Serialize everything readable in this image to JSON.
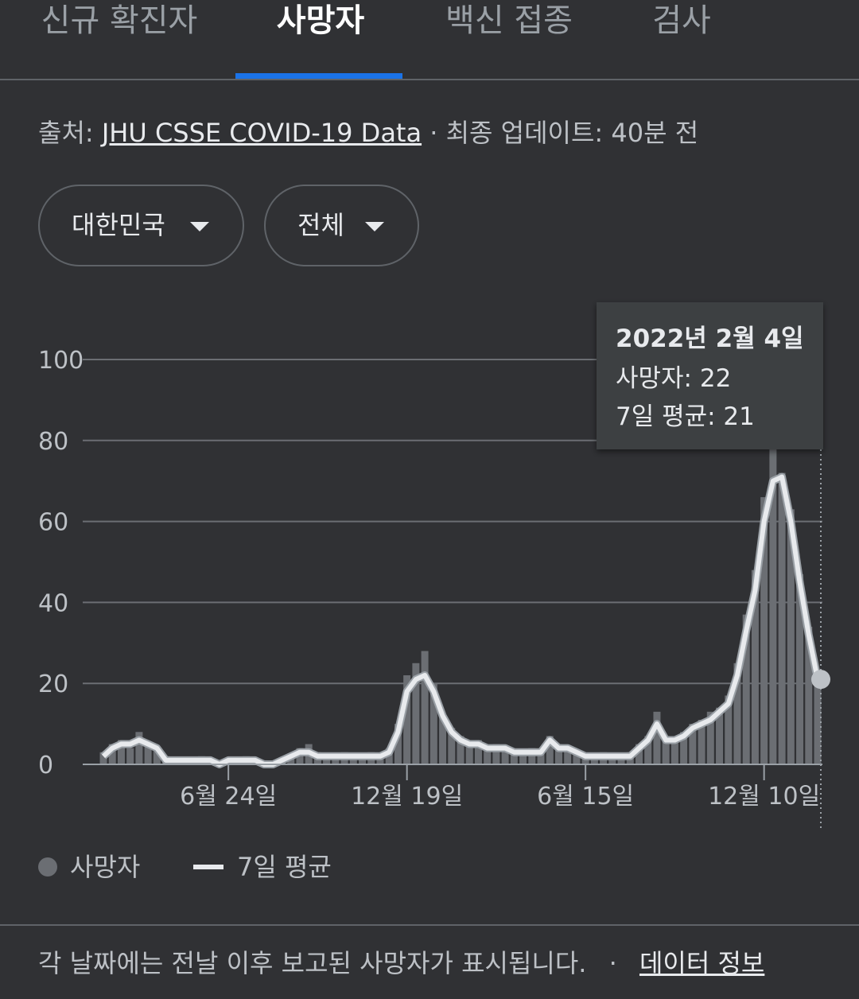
{
  "tabs": {
    "items": [
      "신규 확진자",
      "사망자",
      "백신 접종",
      "검사"
    ],
    "selected": 1
  },
  "source": {
    "label": "출처:",
    "link": "JHU CSSE COVID-19 Data",
    "updated": "· 최종 업데이트: 40분 전"
  },
  "filters": [
    "대한민국",
    "전체"
  ],
  "chart_data": {
    "type": "bar_line",
    "categories": [
      null,
      null,
      null,
      null,
      null,
      null,
      null,
      null,
      null,
      null,
      null,
      null,
      null,
      null,
      "6월 24일",
      null,
      null,
      null,
      null,
      null,
      null,
      null,
      null,
      null,
      null,
      null,
      null,
      null,
      null,
      null,
      null,
      null,
      null,
      null,
      "12월 19일",
      null,
      null,
      null,
      null,
      null,
      null,
      null,
      null,
      null,
      null,
      null,
      null,
      null,
      null,
      null,
      null,
      null,
      null,
      null,
      "6월 15일",
      null,
      null,
      null,
      null,
      null,
      null,
      null,
      null,
      null,
      null,
      null,
      null,
      null,
      null,
      null,
      null,
      null,
      null,
      null,
      "12월 10일",
      null,
      null,
      null,
      null,
      null,
      null
    ],
    "series": [
      {
        "name": "사망자",
        "color": "#6b6e73",
        "values": [
          3,
          5,
          6,
          4,
          8,
          5,
          4,
          2,
          1,
          1,
          1,
          2,
          0,
          1,
          1,
          1,
          2,
          0,
          1,
          0,
          1,
          2,
          4,
          5,
          3,
          2,
          2,
          3,
          2,
          2,
          3,
          2,
          4,
          10,
          22,
          25,
          28,
          20,
          12,
          9,
          7,
          5,
          6,
          4,
          5,
          4,
          3,
          3,
          4,
          3,
          7,
          5,
          4,
          3,
          2,
          2,
          3,
          2,
          2,
          3,
          5,
          7,
          13,
          7,
          6,
          8,
          10,
          11,
          13,
          14,
          17,
          25,
          37,
          48,
          66,
          82,
          72,
          63,
          47,
          34,
          22
        ]
      },
      {
        "name": "7일 평균",
        "color": "#e8eaed",
        "values": [
          2,
          4,
          5,
          5,
          6,
          5,
          4,
          1,
          1,
          1,
          1,
          1,
          1,
          0,
          1,
          1,
          1,
          1,
          0,
          0,
          1,
          2,
          3,
          3,
          2,
          2,
          2,
          2,
          2,
          2,
          2,
          2,
          3,
          8,
          18,
          21,
          22,
          18,
          12,
          8,
          6,
          5,
          5,
          4,
          4,
          4,
          3,
          3,
          3,
          3,
          6,
          4,
          4,
          3,
          2,
          2,
          2,
          2,
          2,
          2,
          4,
          6,
          10,
          6,
          6,
          7,
          9,
          10,
          11,
          13,
          15,
          22,
          33,
          43,
          60,
          70,
          71,
          60,
          45,
          32,
          21
        ]
      }
    ],
    "ylim": [
      0,
      100
    ],
    "yticks": [
      0,
      20,
      40,
      60,
      80,
      100
    ],
    "grid": true,
    "tooltip": {
      "title": "2022년 2월 4일",
      "lines": [
        "사망자: 22",
        "7일 평균: 21"
      ]
    }
  },
  "footer": {
    "note": "각 날짜에는 전날 이후 보고된 사망자가 표시됩니다.",
    "separator": "·",
    "link": "데이터 정보"
  }
}
